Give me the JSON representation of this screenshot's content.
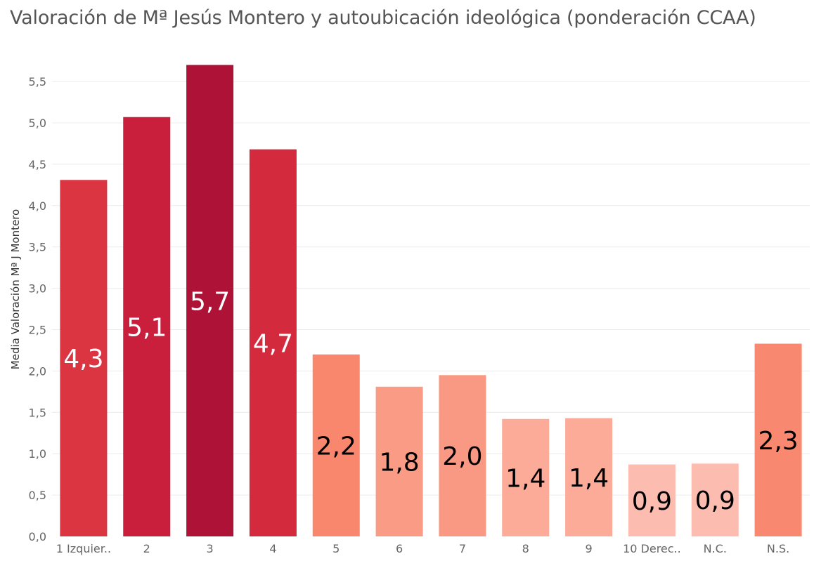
{
  "chart_data": {
    "type": "bar",
    "title": "Valoración de Mª Jesús Montero  y autoubicación ideológica (ponderación CCAA)",
    "xlabel": "",
    "ylabel": "Media Valoración Mª J Montero",
    "ylim": [
      0,
      5.85
    ],
    "yticks": [
      "0,0",
      "0,5",
      "1,0",
      "1,5",
      "2,0",
      "2,5",
      "3,0",
      "3,5",
      "4,0",
      "4,5",
      "5,0",
      "5,5"
    ],
    "grid": true,
    "categories": [
      "1 Izquier..",
      "2",
      "3",
      "4",
      "5",
      "6",
      "7",
      "8",
      "9",
      "10 Derec..",
      "N.C.",
      "N.S."
    ],
    "values": [
      4.31,
      5.07,
      5.7,
      4.68,
      2.2,
      1.81,
      1.95,
      1.42,
      1.43,
      0.87,
      0.88,
      2.33
    ],
    "data_labels": [
      "4,3",
      "5,1",
      "5,7",
      "4,7",
      "2,2",
      "1,8",
      "2,0",
      "1,4",
      "1,4",
      "0,9",
      "0,9",
      "2,3"
    ],
    "colors": [
      "#dc3542",
      "#ca1f3c",
      "#ae1236",
      "#d42a3e",
      "#f8876e",
      "#fa9b86",
      "#fa9983",
      "#fbab98",
      "#fbab98",
      "#fdbcb0",
      "#fdbcb0",
      "#f88870"
    ],
    "label_colors": [
      "#ffffff",
      "#ffffff",
      "#ffffff",
      "#ffffff",
      "#000000",
      "#000000",
      "#000000",
      "#000000",
      "#000000",
      "#000000",
      "#000000",
      "#000000"
    ]
  }
}
